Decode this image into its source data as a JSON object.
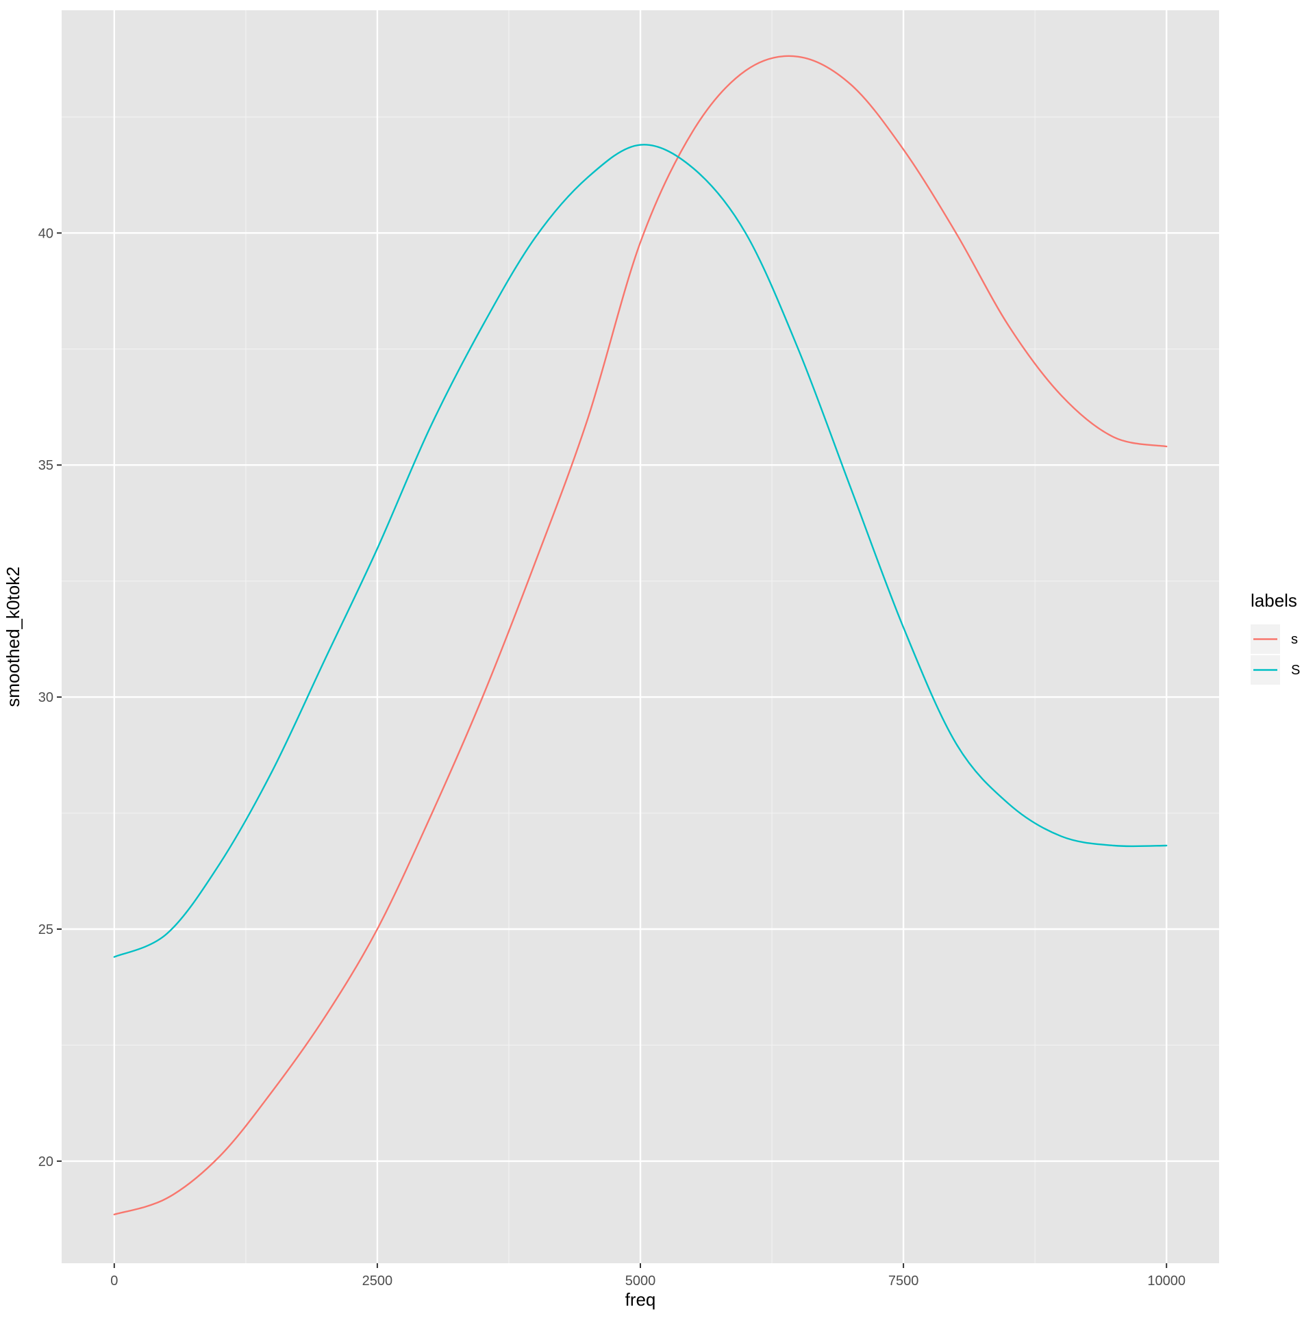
{
  "chart_data": {
    "type": "line",
    "title": "",
    "xlabel": "freq",
    "ylabel": "smoothed_k0tok2",
    "xlim": [
      -500,
      10500
    ],
    "ylim": [
      17.8,
      44.8
    ],
    "x_ticks": [
      0,
      2500,
      5000,
      7500,
      10000
    ],
    "x_tick_labels": [
      "0",
      "2500",
      "5000",
      "7500",
      "10000"
    ],
    "y_ticks": [
      20,
      25,
      30,
      35,
      40
    ],
    "y_tick_labels": [
      "20",
      "25",
      "30",
      "35",
      "40"
    ],
    "x_minor_ticks": [
      1250,
      3750,
      6250,
      8750
    ],
    "y_minor_ticks": [
      22.5,
      27.5,
      32.5,
      37.5,
      42.5
    ],
    "grid": true,
    "legend": {
      "title": "labels",
      "position": "right"
    },
    "series": [
      {
        "name": "s",
        "color": "#F8766D",
        "x": [
          0,
          500,
          1000,
          1500,
          2000,
          2500,
          3000,
          3500,
          4000,
          4500,
          5000,
          5500,
          6000,
          6500,
          7000,
          7500,
          8000,
          8500,
          9000,
          9500,
          10000
        ],
        "y": [
          18.85,
          19.2,
          20.1,
          21.5,
          23.1,
          25.0,
          27.4,
          30.0,
          32.9,
          36.0,
          39.8,
          42.2,
          43.5,
          43.8,
          43.2,
          41.8,
          40.0,
          38.0,
          36.5,
          35.6,
          35.4
        ]
      },
      {
        "name": "S",
        "color": "#00BFC4",
        "x": [
          0,
          500,
          1000,
          1500,
          2000,
          2500,
          3000,
          3500,
          4000,
          4500,
          5000,
          5500,
          6000,
          6500,
          7000,
          7500,
          8000,
          8500,
          9000,
          9500,
          10000
        ],
        "y": [
          24.4,
          24.9,
          26.4,
          28.4,
          30.8,
          33.2,
          35.8,
          38.0,
          39.9,
          41.2,
          41.9,
          41.4,
          40.0,
          37.5,
          34.5,
          31.5,
          29.0,
          27.7,
          27.0,
          26.8,
          26.8
        ]
      }
    ]
  }
}
